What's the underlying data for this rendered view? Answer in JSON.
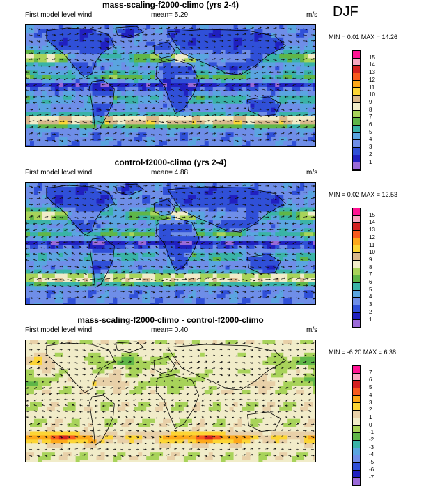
{
  "season": "DJF",
  "panels": [
    {
      "title": "mass-scaling-f2000-climo (yrs 2-4)",
      "subtitle_left": "First model level wind",
      "mean_text": "mean=  5.29",
      "units": "m/s",
      "minmax_text": "MIN =  0.01 MAX =  14.26",
      "type": "abs"
    },
    {
      "title": "control-f2000-climo (yrs 2-4)",
      "subtitle_left": "First model level wind",
      "mean_text": "mean=  4.88",
      "units": "m/s",
      "minmax_text": "MIN =  0.02 MAX =  12.53",
      "type": "abs"
    },
    {
      "title": "mass-scaling-f2000-climo - control-f2000-climo",
      "subtitle_left": "First model level wind",
      "mean_text": "mean=  0.40",
      "units": "m/s",
      "minmax_text": "MIN =  -6.20 MAX =  6.38",
      "type": "diff"
    }
  ],
  "colorbars": {
    "abs": {
      "labels": [
        "15",
        "14",
        "13",
        "12",
        "11",
        "10",
        "9",
        "8",
        "7",
        "6",
        "5",
        "4",
        "3",
        "2",
        "1"
      ],
      "colors": [
        "#ff1493",
        "#f7a6c0",
        "#d42020",
        "#f85a1e",
        "#fda81a",
        "#fcd535",
        "#d9b88c",
        "#f1ecc9",
        "#a8d35a",
        "#5fb648",
        "#3ab3a7",
        "#5aa5e0",
        "#6f8ee8",
        "#3050d8",
        "#2020c0",
        "#9a6ad8"
      ]
    },
    "diff": {
      "labels": [
        "7",
        "6",
        "5",
        "4",
        "3",
        "2",
        "1",
        "0",
        "-1",
        "-2",
        "-3",
        "-4",
        "-5",
        "-6",
        "-7"
      ],
      "colors": [
        "#ff1493",
        "#f7a6c0",
        "#d42020",
        "#f85a1e",
        "#fda81a",
        "#fcd535",
        "#e8d0a8",
        "#f1ecc9",
        "#a8d35a",
        "#5fb648",
        "#3ab3a7",
        "#5aa5e0",
        "#6f8ee8",
        "#3050d8",
        "#2020c0",
        "#9a6ad8"
      ]
    }
  },
  "chart_data": [
    {
      "type": "heatmap",
      "title": "mass-scaling-f2000-climo (yrs 2-4)",
      "variable": "First model level wind",
      "units": "m/s",
      "mean": 5.29,
      "min": 0.01,
      "max": 14.26,
      "contour_levels": [
        1,
        2,
        3,
        4,
        5,
        6,
        7,
        8,
        9,
        10,
        11,
        12,
        13,
        14,
        15
      ],
      "overlay": "wind vectors",
      "projection": "global lat-lon"
    },
    {
      "type": "heatmap",
      "title": "control-f2000-climo (yrs 2-4)",
      "variable": "First model level wind",
      "units": "m/s",
      "mean": 4.88,
      "min": 0.02,
      "max": 12.53,
      "contour_levels": [
        1,
        2,
        3,
        4,
        5,
        6,
        7,
        8,
        9,
        10,
        11,
        12,
        13,
        14,
        15
      ],
      "overlay": "wind vectors",
      "projection": "global lat-lon"
    },
    {
      "type": "heatmap",
      "title": "mass-scaling-f2000-climo - control-f2000-climo",
      "variable": "First model level wind",
      "units": "m/s",
      "mean": 0.4,
      "min": -6.2,
      "max": 6.38,
      "contour_levels": [
        -7,
        -6,
        -5,
        -4,
        -3,
        -2,
        -1,
        0,
        1,
        2,
        3,
        4,
        5,
        6,
        7
      ],
      "overlay": "wind vectors",
      "projection": "global lat-lon"
    }
  ]
}
